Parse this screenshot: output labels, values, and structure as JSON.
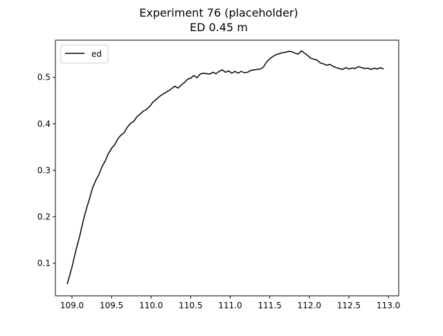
{
  "chart_data": {
    "type": "line",
    "title": "Experiment 76 (placeholder)",
    "subtitle": "ED 0.45 m",
    "xlabel": "",
    "ylabel": "",
    "xlim": [
      108.79,
      113.13
    ],
    "ylim": [
      0.03,
      0.58
    ],
    "xticks": [
      109.0,
      109.5,
      110.0,
      110.5,
      111.0,
      111.5,
      112.0,
      112.5,
      113.0
    ],
    "yticks": [
      0.1,
      0.2,
      0.3,
      0.4,
      0.5
    ],
    "grid": false,
    "legend": {
      "position": "upper-left",
      "entries": [
        "ed"
      ]
    },
    "series": [
      {
        "name": "ed",
        "color": "#000000",
        "x": [
          108.94,
          109.0,
          109.05,
          109.1,
          109.14,
          109.18,
          109.22,
          109.26,
          109.3,
          109.34,
          109.38,
          109.42,
          109.46,
          109.5,
          109.54,
          109.58,
          109.62,
          109.66,
          109.7,
          109.74,
          109.78,
          109.82,
          109.86,
          109.9,
          109.94,
          109.98,
          110.02,
          110.06,
          110.1,
          110.14,
          110.18,
          110.22,
          110.26,
          110.3,
          110.34,
          110.38,
          110.42,
          110.46,
          110.5,
          110.54,
          110.58,
          110.62,
          110.66,
          110.7,
          110.74,
          110.78,
          110.82,
          110.86,
          110.9,
          110.94,
          110.98,
          111.02,
          111.06,
          111.1,
          111.14,
          111.18,
          111.22,
          111.26,
          111.3,
          111.34,
          111.38,
          111.42,
          111.46,
          111.5,
          111.54,
          111.58,
          111.62,
          111.66,
          111.7,
          111.74,
          111.78,
          111.82,
          111.86,
          111.9,
          111.94,
          111.98,
          112.02,
          112.06,
          112.1,
          112.14,
          112.18,
          112.22,
          112.26,
          112.3,
          112.34,
          112.38,
          112.42,
          112.46,
          112.5,
          112.54,
          112.58,
          112.62,
          112.66,
          112.7,
          112.74,
          112.78,
          112.82,
          112.86,
          112.9,
          112.94
        ],
        "y": [
          0.055,
          0.092,
          0.128,
          0.16,
          0.19,
          0.216,
          0.238,
          0.262,
          0.278,
          0.291,
          0.308,
          0.32,
          0.336,
          0.347,
          0.355,
          0.368,
          0.376,
          0.381,
          0.393,
          0.401,
          0.405,
          0.415,
          0.421,
          0.427,
          0.431,
          0.437,
          0.446,
          0.452,
          0.458,
          0.463,
          0.467,
          0.471,
          0.476,
          0.481,
          0.477,
          0.483,
          0.489,
          0.496,
          0.498,
          0.504,
          0.499,
          0.507,
          0.509,
          0.508,
          0.507,
          0.511,
          0.508,
          0.513,
          0.516,
          0.511,
          0.514,
          0.509,
          0.513,
          0.509,
          0.513,
          0.51,
          0.511,
          0.515,
          0.516,
          0.517,
          0.518,
          0.522,
          0.533,
          0.54,
          0.545,
          0.549,
          0.551,
          0.553,
          0.554,
          0.556,
          0.555,
          0.552,
          0.55,
          0.557,
          0.552,
          0.547,
          0.541,
          0.539,
          0.537,
          0.531,
          0.529,
          0.526,
          0.528,
          0.524,
          0.521,
          0.519,
          0.517,
          0.521,
          0.518,
          0.52,
          0.519,
          0.523,
          0.521,
          0.519,
          0.52,
          0.517,
          0.52,
          0.518,
          0.521,
          0.518
        ]
      }
    ]
  }
}
